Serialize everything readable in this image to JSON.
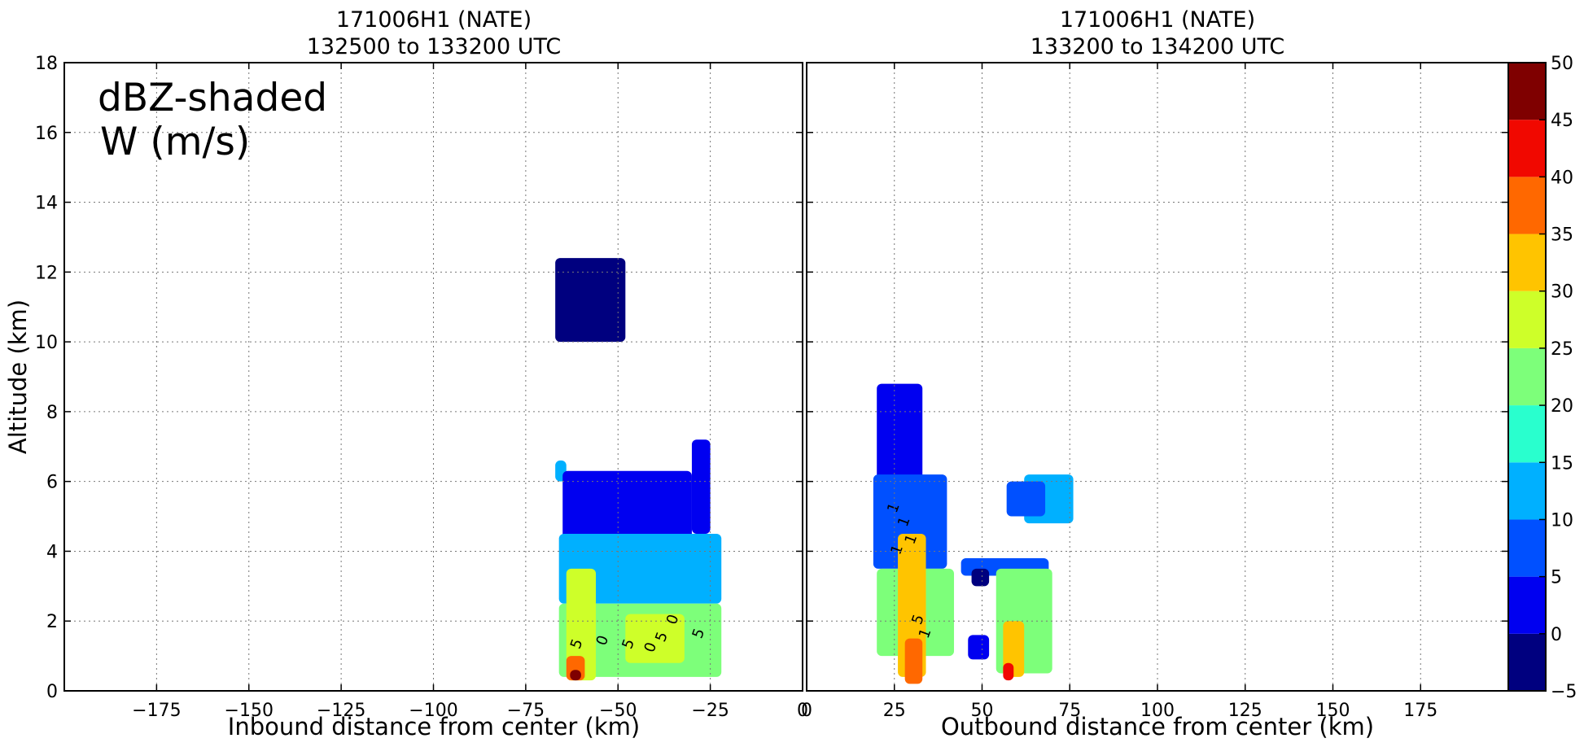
{
  "chart_data": [
    {
      "type": "heatmap",
      "title": "171006H1 (NATE)",
      "subtitle": "132500 to 133200 UTC",
      "xlabel": "Inbound distance from center (km)",
      "ylabel": "Altitude (km)",
      "xlim": [
        -200,
        0
      ],
      "ylim": [
        0,
        18
      ],
      "xticks": [
        -175,
        -150,
        -125,
        -100,
        -75,
        -50,
        -25,
        0
      ],
      "xtick_labels": [
        "−175",
        "−150",
        "−125",
        "−100",
        "−75",
        "−50",
        "−25",
        "0"
      ],
      "yticks": [
        0,
        2,
        4,
        6,
        8,
        10,
        12,
        14,
        16,
        18
      ],
      "grid": true,
      "annotation_lines": [
        "dBZ-shaded",
        "W (m/s)"
      ],
      "reflectivity_regions": [
        {
          "x_range": [
            -67,
            -48
          ],
          "y_range": [
            10.0,
            12.4
          ],
          "dbz": -5
        },
        {
          "x_range": [
            -67,
            -64
          ],
          "y_range": [
            6.0,
            6.6
          ],
          "dbz": 12
        },
        {
          "x_range": [
            -65,
            -30
          ],
          "y_range": [
            4.0,
            6.3
          ],
          "dbz": 2
        },
        {
          "x_range": [
            -30,
            -25
          ],
          "y_range": [
            4.5,
            7.2
          ],
          "dbz": 3
        },
        {
          "x_range": [
            -66,
            -22
          ],
          "y_range": [
            2.5,
            4.5
          ],
          "dbz": 12
        },
        {
          "x_range": [
            -66,
            -22
          ],
          "y_range": [
            0.4,
            2.5
          ],
          "dbz": 22
        },
        {
          "x_range": [
            -64,
            -56
          ],
          "y_range": [
            0.3,
            3.5
          ],
          "dbz": 28
        },
        {
          "x_range": [
            -48,
            -32
          ],
          "y_range": [
            0.8,
            2.2
          ],
          "dbz": 27
        },
        {
          "x_range": [
            -64,
            -59
          ],
          "y_range": [
            0.3,
            1.0
          ],
          "dbz": 38
        },
        {
          "x_range": [
            -63,
            -60
          ],
          "y_range": [
            0.3,
            0.6
          ],
          "dbz": 45
        }
      ],
      "w_contour_labels": [
        "5",
        "0",
        "5",
        "0",
        "5",
        "0",
        "5"
      ]
    },
    {
      "type": "heatmap",
      "title": "171006H1 (NATE)",
      "subtitle": "133200 to 134200 UTC",
      "xlabel": "Outbound distance from center (km)",
      "ylabel": "",
      "xlim": [
        0,
        200
      ],
      "ylim": [
        0,
        18
      ],
      "xticks": [
        0,
        25,
        50,
        75,
        100,
        125,
        150,
        175
      ],
      "xtick_labels": [
        "0",
        "25",
        "50",
        "75",
        "100",
        "125",
        "150",
        "175"
      ],
      "yticks": [
        0,
        2,
        4,
        6,
        8,
        10,
        12,
        14,
        16,
        18
      ],
      "grid": true,
      "reflectivity_regions": [
        {
          "x_range": [
            20,
            33
          ],
          "y_range": [
            5.5,
            8.8
          ],
          "dbz": 2
        },
        {
          "x_range": [
            19,
            40
          ],
          "y_range": [
            3.5,
            6.2
          ],
          "dbz": 8
        },
        {
          "x_range": [
            20,
            42
          ],
          "y_range": [
            1.0,
            3.5
          ],
          "dbz": 20
        },
        {
          "x_range": [
            26,
            34
          ],
          "y_range": [
            0.4,
            4.5
          ],
          "dbz": 30
        },
        {
          "x_range": [
            28,
            33
          ],
          "y_range": [
            0.2,
            1.5
          ],
          "dbz": 38
        },
        {
          "x_range": [
            44,
            69
          ],
          "y_range": [
            3.3,
            3.8
          ],
          "dbz": 8
        },
        {
          "x_range": [
            54,
            70
          ],
          "y_range": [
            0.5,
            3.5
          ],
          "dbz": 22
        },
        {
          "x_range": [
            56,
            62
          ],
          "y_range": [
            0.4,
            2.0
          ],
          "dbz": 33
        },
        {
          "x_range": [
            56,
            59
          ],
          "y_range": [
            0.3,
            0.8
          ],
          "dbz": 40
        },
        {
          "x_range": [
            46,
            52
          ],
          "y_range": [
            0.9,
            1.6
          ],
          "dbz": 0
        },
        {
          "x_range": [
            47,
            52
          ],
          "y_range": [
            3.0,
            3.5
          ],
          "dbz": -2
        },
        {
          "x_range": [
            62,
            76
          ],
          "y_range": [
            4.8,
            6.2
          ],
          "dbz": 10
        },
        {
          "x_range": [
            57,
            68
          ],
          "y_range": [
            5.0,
            6.0
          ],
          "dbz": 5
        }
      ],
      "w_contour_labels": [
        "1",
        "1",
        "1",
        "5",
        "1",
        "1"
      ]
    }
  ],
  "colorbar": {
    "min": -5,
    "max": 50,
    "ticks": [
      "−5",
      "0",
      "5",
      "10",
      "15",
      "20",
      "25",
      "30",
      "35",
      "40",
      "45",
      "50"
    ],
    "levels": [
      {
        "from": -5,
        "to": 0,
        "color": "#00007f"
      },
      {
        "from": 0,
        "to": 5,
        "color": "#0000f0"
      },
      {
        "from": 5,
        "to": 10,
        "color": "#0050ff"
      },
      {
        "from": 10,
        "to": 15,
        "color": "#00b0ff"
      },
      {
        "from": 15,
        "to": 20,
        "color": "#29ffce"
      },
      {
        "from": 20,
        "to": 25,
        "color": "#7dff7a"
      },
      {
        "from": 25,
        "to": 30,
        "color": "#ceff29"
      },
      {
        "from": 30,
        "to": 35,
        "color": "#ffc400"
      },
      {
        "from": 35,
        "to": 40,
        "color": "#ff6800"
      },
      {
        "from": 40,
        "to": 45,
        "color": "#f10800"
      },
      {
        "from": 45,
        "to": 50,
        "color": "#7f0000"
      }
    ]
  }
}
